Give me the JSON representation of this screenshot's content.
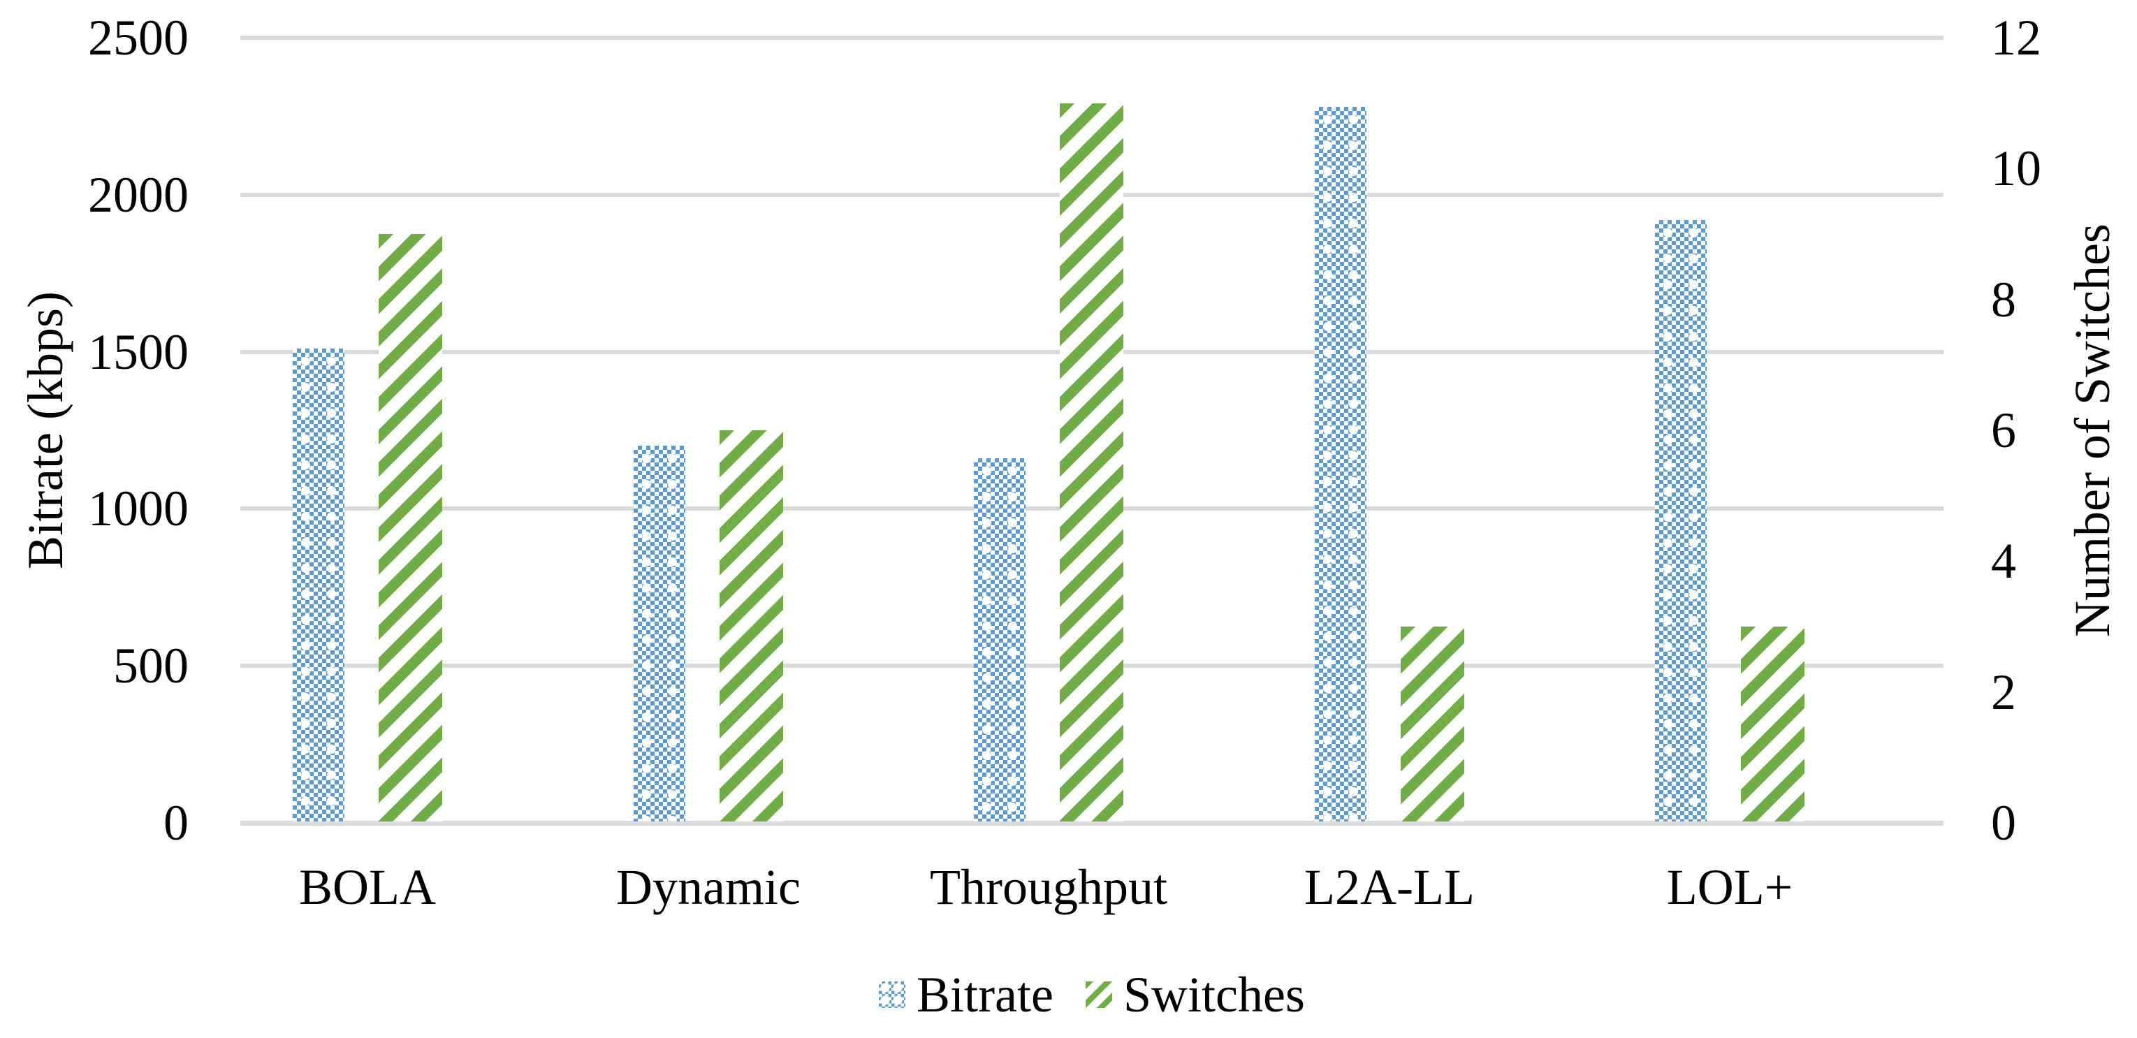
{
  "chart_data": {
    "type": "bar",
    "title": "",
    "categories": [
      "BOLA",
      "Dynamic",
      "Throughput",
      "L2A-LL",
      "LOL+"
    ],
    "series": [
      {
        "name": "Bitrate",
        "axis": "left",
        "values": [
          1510,
          1200,
          1160,
          2280,
          1920
        ],
        "color": "#5B9BD5",
        "pattern": "checkerboard"
      },
      {
        "name": "Switches",
        "axis": "right",
        "values": [
          9,
          6,
          11,
          3,
          3
        ],
        "color": "#70AD47",
        "pattern": "diagonal-stripes"
      }
    ],
    "left_axis": {
      "label": "Bitrate (kbps)",
      "min": 0,
      "max": 2500,
      "step": 500,
      "ticks": [
        "0",
        "500",
        "1000",
        "1500",
        "2000",
        "2500"
      ]
    },
    "right_axis": {
      "label": "Number of Switches",
      "min": 0,
      "max": 12,
      "step": 2,
      "ticks": [
        "0",
        "2",
        "4",
        "6",
        "8",
        "10",
        "12"
      ]
    },
    "legend": {
      "position": "bottom",
      "entries": [
        "Bitrate",
        "Switches"
      ]
    },
    "grid": true,
    "gridline_color": "#D9D9D9",
    "background_color": "#FFFFFF",
    "text_color": "#000000"
  }
}
